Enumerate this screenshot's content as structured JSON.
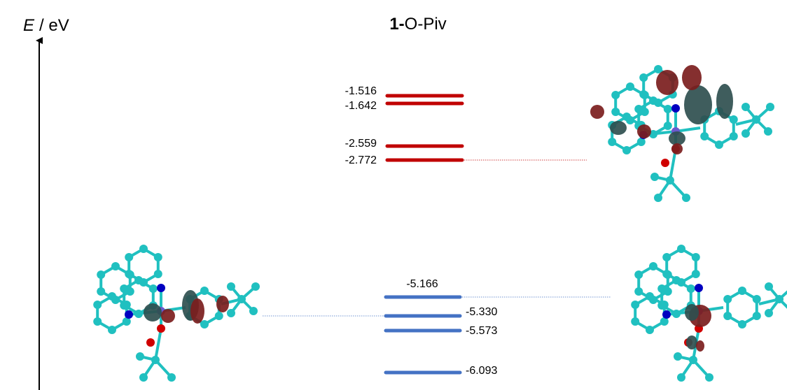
{
  "title": {
    "bold": "1-",
    "rest": "O-Piv"
  },
  "axis_label": {
    "symbol": "E",
    "rest": "/ eV"
  },
  "unoccupied_levels": [
    "-1.516",
    "-1.642",
    "-2.559",
    "-2.772"
  ],
  "occupied_levels": [
    "-5.166",
    "-5.330",
    "-5.573",
    "-6.093"
  ]
}
